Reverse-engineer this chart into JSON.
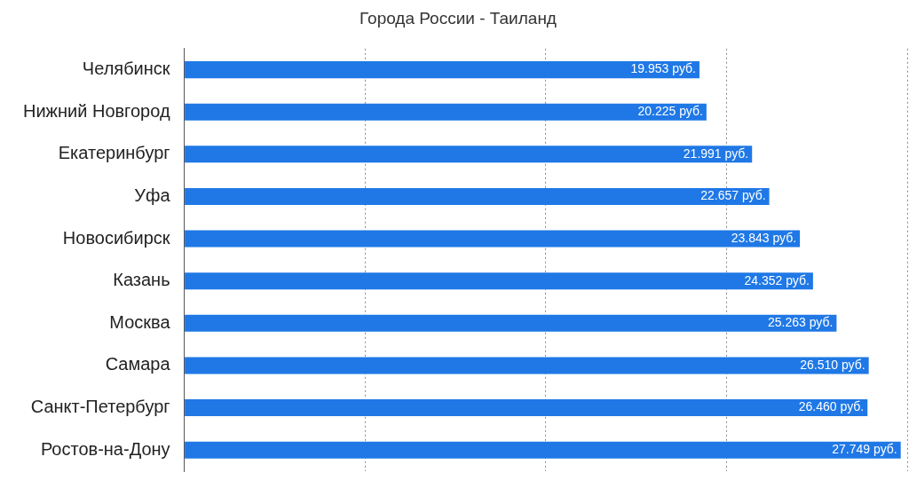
{
  "chart_data": {
    "type": "bar",
    "orientation": "horizontal",
    "title": "Города России - Таиланд",
    "categories": [
      "Челябинск",
      "Нижний Новгород",
      "Екатеринбург",
      "Уфа",
      "Новосибирск",
      "Казань",
      "Москва",
      "Самара",
      "Санкт-Петербург",
      "Ростов-на-Дону"
    ],
    "values": [
      19953,
      20225,
      21991,
      22657,
      23843,
      24352,
      25263,
      26510,
      26460,
      27749
    ],
    "value_labels": [
      "19.953 руб.",
      "20.225 руб.",
      "21.991 руб.",
      "22.657 руб.",
      "23.843 руб.",
      "24.352 руб.",
      "25.263 руб.",
      "26.510 руб.",
      "26.460 руб.",
      "27.749 руб."
    ],
    "color": "#1f78e6",
    "xlim": [
      0,
      28000
    ],
    "xticks": [
      {
        "value": 0,
        "label": null
      },
      {
        "value": 7000,
        "label": null
      },
      {
        "value": 14000,
        "label": null
      },
      {
        "value": 21000,
        "label": null
      },
      {
        "value": 28000,
        "label": null
      }
    ],
    "grid": "x",
    "tick_labels": "y",
    "legend": false
  }
}
